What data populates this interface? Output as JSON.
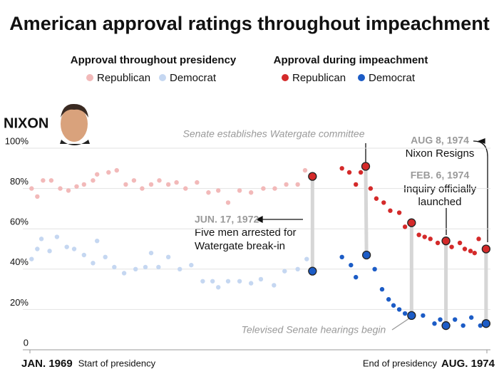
{
  "chart_data": {
    "type": "scatter",
    "title": "American approval ratings throughout impeachment",
    "subject": "NIXON",
    "legend_groups": [
      "Approval throughout presidency",
      "Approval during impeachment"
    ],
    "xlim": [
      1969,
      1974.58
    ],
    "xticks": [
      {
        "value": 1969,
        "label": "JAN. 1969"
      },
      {
        "value": 1974.58,
        "label": "AUG. 1974"
      }
    ],
    "xtick_notes": [
      "Start of presidency",
      "End of presidency"
    ],
    "ylim": [
      0,
      100
    ],
    "yticks": [
      0,
      {
        "value": 20,
        "label": "20%"
      },
      {
        "value": 40,
        "label": "40%"
      },
      {
        "value": 60,
        "label": "60%"
      },
      {
        "value": 80,
        "label": "80%"
      },
      {
        "value": 100,
        "label": "100%"
      }
    ],
    "grid": true,
    "series": [
      {
        "name": "Republican",
        "group": 0,
        "color": "#f2b9b9",
        "x": [
          1969.02,
          1969.09,
          1969.16,
          1969.26,
          1969.37,
          1969.47,
          1969.57,
          1969.66,
          1969.77,
          1969.82,
          1969.96,
          1970.06,
          1970.17,
          1970.27,
          1970.37,
          1970.48,
          1970.58,
          1970.69,
          1970.79,
          1970.9,
          1971.04,
          1971.18,
          1971.3,
          1971.42,
          1971.56,
          1971.7,
          1971.85,
          1971.99,
          1972.13,
          1972.27,
          1972.36
        ],
        "values": [
          80,
          76,
          84,
          84,
          80,
          79,
          81,
          82,
          84,
          87,
          88,
          89,
          82,
          84,
          80,
          82,
          84,
          82,
          83,
          80,
          83,
          78,
          79,
          73,
          79,
          78,
          80,
          80,
          82,
          82,
          89
        ]
      },
      {
        "name": "Democrat",
        "group": 0,
        "color": "#c5d7f1",
        "x": [
          1969.02,
          1969.09,
          1969.14,
          1969.24,
          1969.33,
          1969.45,
          1969.54,
          1969.66,
          1969.77,
          1969.82,
          1969.92,
          1970.03,
          1970.15,
          1970.29,
          1970.41,
          1970.48,
          1970.57,
          1970.69,
          1970.83,
          1970.97,
          1971.11,
          1971.23,
          1971.3,
          1971.42,
          1971.56,
          1971.7,
          1971.82,
          1971.98,
          1972.11,
          1972.27,
          1972.38
        ],
        "values": [
          45,
          50,
          55,
          49,
          56,
          51,
          50,
          47,
          43,
          54,
          46,
          41,
          38,
          40,
          41,
          48,
          41,
          46,
          40,
          42,
          34,
          34,
          31,
          34,
          34,
          33,
          35,
          32,
          39,
          40,
          45
        ]
      },
      {
        "name": "Republican",
        "group": 1,
        "color": "#d42a2a",
        "highlight": [
          0,
          5,
          12,
          17,
          24
        ],
        "x": [
          1972.45,
          1972.81,
          1972.9,
          1972.98,
          1973.04,
          1973.1,
          1973.16,
          1973.23,
          1973.32,
          1973.4,
          1973.51,
          1973.58,
          1973.66,
          1973.75,
          1973.82,
          1973.89,
          1973.98,
          1974.08,
          1974.15,
          1974.25,
          1974.31,
          1974.38,
          1974.43,
          1974.48,
          1974.57
        ],
        "values": [
          86,
          90,
          88,
          82,
          88,
          91,
          80,
          75,
          73,
          69,
          68,
          61,
          63,
          57,
          56,
          55,
          53,
          54,
          51,
          53,
          50,
          49,
          48,
          55,
          50
        ]
      },
      {
        "name": "Democrat",
        "group": 1,
        "color": "#1c5cc6",
        "highlight": [
          0,
          4,
          11,
          15,
          20
        ],
        "x": [
          1972.45,
          1972.81,
          1972.92,
          1972.98,
          1973.11,
          1973.21,
          1973.3,
          1973.38,
          1973.44,
          1973.51,
          1973.58,
          1973.66,
          1973.8,
          1973.94,
          1974.01,
          1974.08,
          1974.19,
          1974.29,
          1974.39,
          1974.5,
          1974.57
        ],
        "values": [
          39,
          46,
          42,
          36,
          47,
          40,
          30,
          25,
          22,
          20,
          18,
          17,
          17,
          13,
          15,
          12,
          15,
          12,
          16,
          12,
          13
        ]
      }
    ],
    "annotations": [
      {
        "lines": [
          "Senate establishes Watergate committee"
        ]
      },
      {
        "date": "JUN. 17, 1972",
        "lines": [
          "Five men arrested for",
          "Watergate break-in"
        ]
      },
      {
        "date": "AUG 8, 1974",
        "lines": [
          "Nixon Resigns"
        ]
      },
      {
        "date": "FEB. 6, 1974",
        "lines": [
          "Inquiry officially",
          "launched"
        ]
      },
      {
        "lines": [
          "Televised Senate hearings begin"
        ]
      }
    ]
  }
}
